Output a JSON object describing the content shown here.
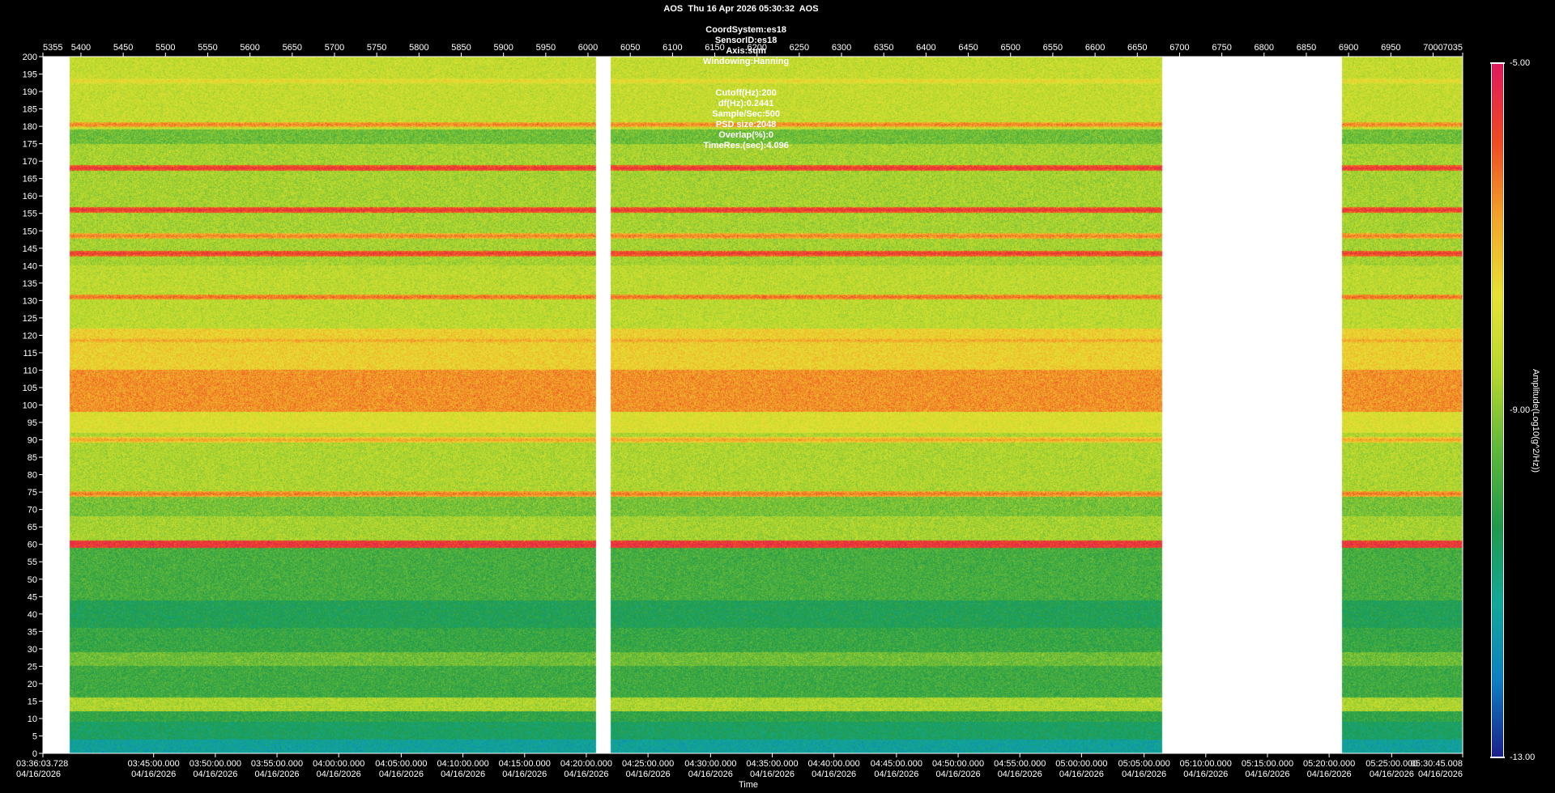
{
  "header": {
    "line1": "AOS  Thu 16 Apr 2026 05:30:32  AOS",
    "line2": [
      "CoordSystem:es18",
      "SensorID:es18",
      "Axis:sum",
      "Windowing:Hanning"
    ],
    "line3": [
      "Cutoff(Hz):200",
      "df(Hz):0.2441",
      "Sample/Sec:500",
      "PSD size:2048",
      "Overlap(%):0",
      "TimeRes.(sec):4.096"
    ]
  },
  "colors": {
    "background": "#000000",
    "no_data": "#ffffff",
    "text": "#ffffff",
    "colormap": [
      "#1a1f8a",
      "#0d7fc2",
      "#12a89a",
      "#1f9a4a",
      "#5fb83a",
      "#b6d82e",
      "#e8e234",
      "#f2a52a",
      "#ee4a22",
      "#e0195e"
    ]
  },
  "chart_data": {
    "type": "heatmap",
    "title": "AOS  Thu 16 Apr 2026 05:30:32  AOS",
    "xlabel": "Time",
    "ylabel": "",
    "colorbar_label": "Amplitude(Log10(g^2/Hz))",
    "colorbar_range": [
      -13.0,
      -5.0
    ],
    "colorbar_ticks": [
      "-5.00",
      "-9.00",
      "-13.00"
    ],
    "ylim": [
      0,
      200
    ],
    "y_ticks": [
      200,
      195,
      190,
      185,
      180,
      175,
      170,
      165,
      160,
      155,
      150,
      145,
      140,
      135,
      130,
      125,
      120,
      115,
      110,
      105,
      100,
      95,
      90,
      85,
      80,
      75,
      70,
      65,
      60,
      55,
      50,
      45,
      40,
      35,
      30,
      25,
      20,
      15,
      10,
      5,
      0
    ],
    "top_axis_range": [
      5355,
      7035
    ],
    "top_axis_ticks": [
      5355,
      5400,
      5450,
      5500,
      5550,
      5600,
      5650,
      5700,
      5750,
      5800,
      5850,
      5900,
      5950,
      6000,
      6050,
      6100,
      6150,
      6200,
      6250,
      6300,
      6350,
      6400,
      6450,
      6500,
      6550,
      6600,
      6650,
      6700,
      6750,
      6800,
      6850,
      6900,
      6950,
      7000,
      7035
    ],
    "time_labels": [
      {
        "time": "03:36:03.728",
        "date": "04/16/2026",
        "idx": 5355
      },
      {
        "time": "03:45:00.000",
        "date": "04/16/2026",
        "idx": 5486
      },
      {
        "time": "03:50:00.000",
        "date": "04/16/2026",
        "idx": 5559
      },
      {
        "time": "03:55:00.000",
        "date": "04/16/2026",
        "idx": 5632
      },
      {
        "time": "04:00:00.000",
        "date": "04/16/2026",
        "idx": 5705
      },
      {
        "time": "04:05:00.000",
        "date": "04/16/2026",
        "idx": 5779
      },
      {
        "time": "04:10:00.000",
        "date": "04/16/2026",
        "idx": 5852
      },
      {
        "time": "04:15:00.000",
        "date": "04/16/2026",
        "idx": 5925
      },
      {
        "time": "04:20:00.000",
        "date": "04/16/2026",
        "idx": 5998
      },
      {
        "time": "04:25:00.000",
        "date": "04/16/2026",
        "idx": 6071
      },
      {
        "time": "04:30:00.000",
        "date": "04/16/2026",
        "idx": 6145
      },
      {
        "time": "04:35:00.000",
        "date": "04/16/2026",
        "idx": 6218
      },
      {
        "time": "04:40:00.000",
        "date": "04/16/2026",
        "idx": 6291
      },
      {
        "time": "04:45:00.000",
        "date": "04/16/2026",
        "idx": 6365
      },
      {
        "time": "04:50:00.000",
        "date": "04/16/2026",
        "idx": 6438
      },
      {
        "time": "04:55:00.000",
        "date": "04/16/2026",
        "idx": 6511
      },
      {
        "time": "05:00:00.000",
        "date": "04/16/2026",
        "idx": 6584
      },
      {
        "time": "05:05:00.000",
        "date": "04/16/2026",
        "idx": 6658
      },
      {
        "time": "05:10:00.000",
        "date": "04/16/2026",
        "idx": 6731
      },
      {
        "time": "05:15:00.000",
        "date": "04/16/2026",
        "idx": 6804
      },
      {
        "time": "05:20:00.000",
        "date": "04/16/2026",
        "idx": 6877
      },
      {
        "time": "05:25:00.000",
        "date": "04/16/2026",
        "idx": 6951
      },
      {
        "time": "05:30:45.008",
        "date": "04/16/2026",
        "idx": 7035
      }
    ],
    "data_segments": [
      [
        5387,
        6010
      ],
      [
        6027,
        6679
      ],
      [
        6892,
        7035
      ]
    ],
    "baseline_level": -9.0,
    "frequency_bands": [
      {
        "from": 0,
        "to": 4,
        "level": -11.3
      },
      {
        "from": 4,
        "to": 9,
        "level": -10.6
      },
      {
        "from": 9,
        "to": 12,
        "level": -10.1
      },
      {
        "from": 12,
        "to": 16,
        "level": -8.6
      },
      {
        "from": 16,
        "to": 25,
        "level": -9.9
      },
      {
        "from": 25,
        "to": 29,
        "level": -9.3
      },
      {
        "from": 29,
        "to": 36,
        "level": -10.0
      },
      {
        "from": 36,
        "to": 44,
        "level": -10.4
      },
      {
        "from": 44,
        "to": 59,
        "level": -9.8
      },
      {
        "from": 59,
        "to": 61,
        "level": -5.6
      },
      {
        "from": 61,
        "to": 68,
        "level": -8.7
      },
      {
        "from": 68,
        "to": 74,
        "level": -9.2
      },
      {
        "from": 74,
        "to": 92,
        "level": -8.6
      },
      {
        "from": 92,
        "to": 98,
        "level": -7.9
      },
      {
        "from": 98,
        "to": 110,
        "level": -6.6
      },
      {
        "from": 110,
        "to": 122,
        "level": -7.4
      },
      {
        "from": 122,
        "to": 140,
        "level": -8.4
      },
      {
        "from": 140,
        "to": 175,
        "level": -8.7
      },
      {
        "from": 175,
        "to": 179,
        "level": -9.3
      },
      {
        "from": 179,
        "to": 200,
        "level": -8.3
      }
    ],
    "lines": [
      {
        "freq": 60,
        "level": -5.4
      },
      {
        "freq": 74.5,
        "level": -6.3
      },
      {
        "freq": 90,
        "level": -6.8
      },
      {
        "freq": 118.5,
        "level": -6.8
      },
      {
        "freq": 131,
        "level": -6.2
      },
      {
        "freq": 143.5,
        "level": -5.6
      },
      {
        "freq": 148.5,
        "level": -6.4
      },
      {
        "freq": 156,
        "level": -5.5
      },
      {
        "freq": 168,
        "level": -5.5
      },
      {
        "freq": 180.5,
        "level": -6.4
      },
      {
        "freq": 193,
        "level": -7.5
      }
    ]
  }
}
